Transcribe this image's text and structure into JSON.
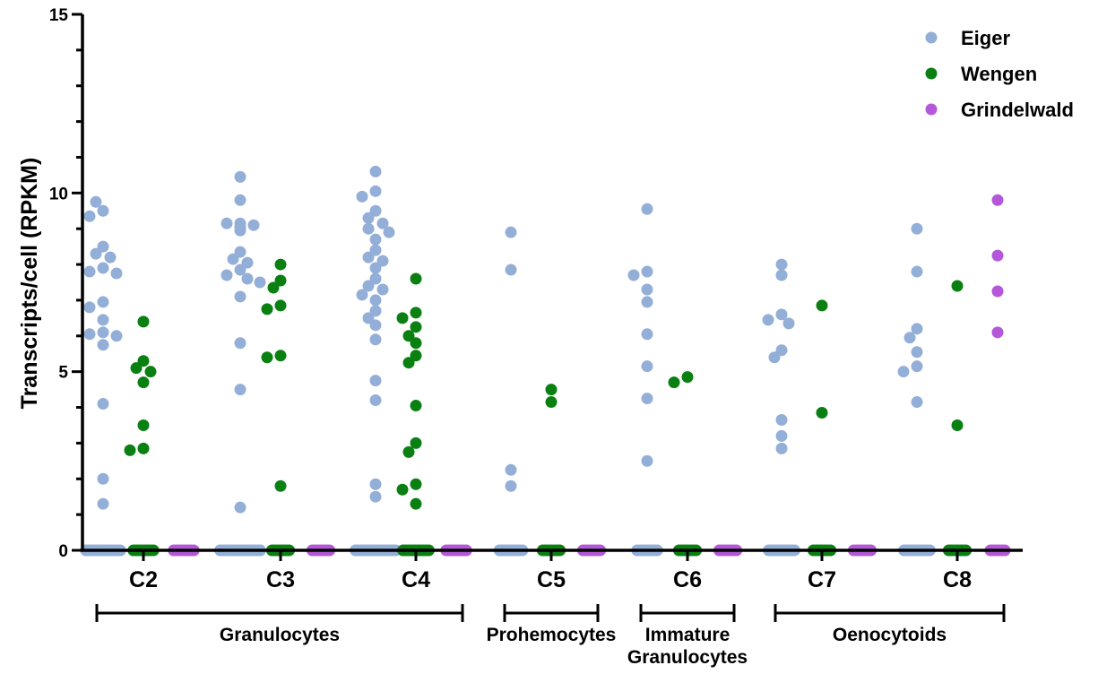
{
  "chart_data": {
    "type": "scatter",
    "title": "",
    "ylabel": "Transcripts/cell (RPKM)",
    "xlabel": "",
    "ylim": [
      0,
      15
    ],
    "yticks": [
      0,
      5,
      10,
      15
    ],
    "y_tick_labels": [
      "0",
      "5",
      "10",
      "15"
    ],
    "categories": [
      "C2",
      "C3",
      "C4",
      "C5",
      "C6",
      "C7",
      "C8"
    ],
    "groups": [
      {
        "label": "Granulocytes",
        "lines": [
          "Granulocytes"
        ],
        "categories": [
          "C2",
          "C3",
          "C4"
        ]
      },
      {
        "label": "Prohemocytes",
        "lines": [
          "Prohemocytes"
        ],
        "categories": [
          "C5"
        ]
      },
      {
        "label": "Immature Granulocytes",
        "lines": [
          "Immature",
          "Granulocytes"
        ],
        "categories": [
          "C6"
        ]
      },
      {
        "label": "Oenocytoids",
        "lines": [
          "Oenocytoids"
        ],
        "categories": [
          "C7",
          "C8"
        ]
      }
    ],
    "legend_position": "top-right",
    "series": [
      {
        "name": "Eiger",
        "color": "#93afd8",
        "values": {
          "C2": [
            0,
            0,
            0,
            0,
            0,
            0,
            0,
            0,
            0,
            0,
            0,
            0,
            0,
            9.5,
            9.75,
            9.35,
            8.5,
            8.3,
            8.2,
            7.9,
            7.8,
            7.75,
            6.95,
            6.8,
            6.45,
            6.1,
            6.05,
            6.0,
            5.75,
            4.1,
            2.0,
            1.3
          ],
          "C3": [
            0,
            0,
            0,
            0,
            0,
            0,
            0,
            0,
            0,
            0,
            0,
            0,
            0,
            0,
            0,
            10.45,
            9.8,
            9.15,
            9.15,
            9.1,
            9.05,
            8.95,
            8.35,
            8.15,
            8.05,
            7.85,
            7.7,
            7.6,
            7.5,
            7.1,
            5.8,
            4.5,
            1.2
          ],
          "C4": [
            0,
            0,
            0,
            0,
            0,
            0,
            0,
            0,
            0,
            0,
            0,
            0,
            0,
            0,
            0,
            10.6,
            10.05,
            9.9,
            9.5,
            9.3,
            9.15,
            9.0,
            8.9,
            8.7,
            8.4,
            8.2,
            8.1,
            7.9,
            7.6,
            7.4,
            7.3,
            7.15,
            7.0,
            6.7,
            6.5,
            6.3,
            5.9,
            4.75,
            4.2,
            1.85,
            1.5
          ],
          "C5": [
            0,
            0,
            0,
            0,
            0,
            0,
            0,
            0,
            0,
            8.9,
            7.85,
            2.25,
            1.8
          ],
          "C6": [
            0,
            0,
            0,
            0,
            0,
            0,
            0,
            0,
            9.55,
            7.8,
            7.7,
            7.3,
            6.95,
            6.05,
            5.15,
            4.25,
            2.5
          ],
          "C7": [
            0,
            0,
            0,
            0,
            0,
            0,
            0,
            0,
            0,
            0,
            8.0,
            7.7,
            6.6,
            6.45,
            6.35,
            5.6,
            5.4,
            3.65,
            3.2,
            2.85
          ],
          "C8": [
            0,
            0,
            0,
            0,
            0,
            0,
            0,
            0,
            0,
            0,
            9.0,
            7.8,
            6.2,
            5.95,
            5.55,
            5.15,
            5.0,
            4.15
          ]
        }
      },
      {
        "name": "Wengen",
        "color": "#0a8012",
        "values": {
          "C2": [
            0,
            0,
            0,
            0,
            0,
            0,
            0,
            0,
            6.4,
            5.3,
            5.1,
            5.0,
            4.7,
            3.5,
            2.85,
            2.8
          ],
          "C3": [
            0,
            0,
            0,
            0,
            0,
            0,
            0,
            8.0,
            7.55,
            7.35,
            6.85,
            6.75,
            5.45,
            5.4,
            1.8
          ],
          "C4": [
            0,
            0,
            0,
            0,
            0,
            0,
            0,
            0,
            0,
            0,
            7.6,
            6.65,
            6.5,
            6.25,
            6.0,
            5.8,
            5.45,
            5.25,
            4.05,
            3.0,
            2.75,
            1.85,
            1.7,
            1.3
          ],
          "C5": [
            0,
            0,
            0,
            0,
            0,
            0,
            0,
            4.5,
            4.15
          ],
          "C6": [
            0,
            0,
            0,
            0,
            0,
            0,
            0,
            4.85,
            4.7
          ],
          "C7": [
            0,
            0,
            0,
            0,
            0,
            0,
            0,
            6.85,
            3.85
          ],
          "C8": [
            0,
            0,
            0,
            0,
            0,
            0,
            0,
            7.4,
            3.5
          ]
        }
      },
      {
        "name": "Grindelwald",
        "color": "#b457d8",
        "values": {
          "C2": [
            0,
            0,
            0,
            0,
            0,
            0,
            0,
            0
          ],
          "C3": [
            0,
            0,
            0,
            0,
            0,
            0,
            0
          ],
          "C4": [
            0,
            0,
            0,
            0,
            0,
            0,
            0,
            0
          ],
          "C5": [
            0,
            0,
            0,
            0,
            0,
            0,
            0
          ],
          "C6": [
            0,
            0,
            0,
            0,
            0,
            0,
            0
          ],
          "C7": [
            0,
            0,
            0,
            0,
            0,
            0,
            0
          ],
          "C8": [
            0,
            0,
            0,
            0,
            0,
            0,
            9.8,
            8.25,
            7.25,
            6.1
          ]
        }
      }
    ]
  }
}
